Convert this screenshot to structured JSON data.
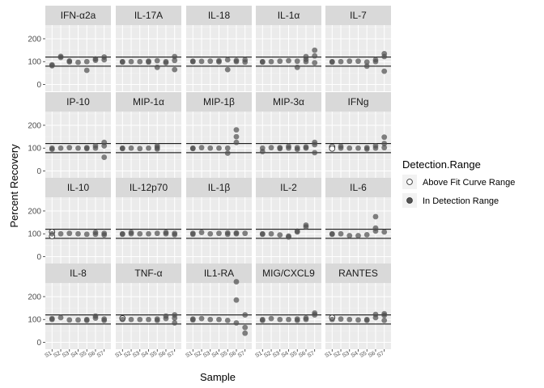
{
  "chart_data": {
    "type": "scatter",
    "facets": [
      "IFN-α2a",
      "IL-17A",
      "IL-18",
      "IL-1α",
      "IL-7",
      "IP-10",
      "MIP-1α",
      "MIP-1β",
      "MIP-3α",
      "IFNg",
      "IL-10",
      "IL-12p70",
      "IL-1β",
      "IL-2",
      "IL-6",
      "IL-8",
      "TNF-α",
      "IL1-RA",
      "MIG/CXCL9",
      "RANTES"
    ],
    "xlabel": "Sample",
    "ylabel": "Percent Recovery",
    "y_ticks": [
      0,
      100,
      200
    ],
    "ylim": [
      -30,
      260
    ],
    "reference_lines": [
      80,
      120
    ],
    "x_tick_labels": [
      "S1",
      "S2",
      "S3",
      "S4",
      "S5",
      "S6",
      "S7"
    ],
    "legend": {
      "title": "Detection.Range",
      "placement": "right",
      "entries": [
        "Above Fit Curve Range",
        "In Detection Range"
      ]
    },
    "colors": {
      "in_range": "#4d4d4d",
      "above": "#ffffff",
      "panel": "#ebebeb",
      "strip": "#d9d9d9",
      "grid": "#ffffff"
    },
    "series": [
      {
        "facet": "IFN-α2a",
        "points": [
          [
            1,
            82,
            0
          ],
          [
            1,
            86,
            0
          ],
          [
            2,
            118,
            0
          ],
          [
            2,
            123,
            0
          ],
          [
            3,
            103,
            0
          ],
          [
            3,
            99,
            0
          ],
          [
            4,
            97,
            0
          ],
          [
            5,
            62,
            0
          ],
          [
            5,
            100,
            0
          ],
          [
            6,
            106,
            0
          ],
          [
            6,
            112,
            0
          ],
          [
            7,
            120,
            0
          ],
          [
            7,
            108,
            0
          ]
        ]
      },
      {
        "facet": "IL-17A",
        "points": [
          [
            1,
            100,
            0
          ],
          [
            1,
            98,
            0
          ],
          [
            2,
            100,
            0
          ],
          [
            3,
            100,
            0
          ],
          [
            4,
            102,
            0
          ],
          [
            4,
            98,
            0
          ],
          [
            5,
            104,
            0
          ],
          [
            5,
            75,
            0
          ],
          [
            6,
            100,
            0
          ],
          [
            6,
            95,
            0
          ],
          [
            7,
            122,
            0
          ],
          [
            7,
            105,
            0
          ],
          [
            7,
            65,
            0
          ]
        ]
      },
      {
        "facet": "IL-18",
        "points": [
          [
            1,
            100,
            0
          ],
          [
            1,
            102,
            0
          ],
          [
            2,
            101,
            0
          ],
          [
            3,
            102,
            0
          ],
          [
            4,
            104,
            0
          ],
          [
            4,
            99,
            0
          ],
          [
            5,
            108,
            0
          ],
          [
            5,
            65,
            0
          ],
          [
            6,
            105,
            0
          ],
          [
            6,
            100,
            0
          ],
          [
            7,
            108,
            0
          ],
          [
            7,
            98,
            0
          ]
        ]
      },
      {
        "facet": "IL-1α",
        "points": [
          [
            1,
            98,
            0
          ],
          [
            1,
            100,
            0
          ],
          [
            2,
            100,
            0
          ],
          [
            3,
            102,
            0
          ],
          [
            4,
            104,
            0
          ],
          [
            5,
            102,
            0
          ],
          [
            5,
            75,
            0
          ],
          [
            6,
            122,
            0
          ],
          [
            6,
            110,
            0
          ],
          [
            6,
            100,
            0
          ],
          [
            7,
            150,
            0
          ],
          [
            7,
            125,
            0
          ],
          [
            7,
            95,
            0
          ]
        ]
      },
      {
        "facet": "IL-7",
        "points": [
          [
            1,
            98,
            0
          ],
          [
            1,
            100,
            0
          ],
          [
            2,
            100,
            0
          ],
          [
            3,
            102,
            0
          ],
          [
            4,
            102,
            0
          ],
          [
            5,
            98,
            0
          ],
          [
            5,
            80,
            0
          ],
          [
            6,
            108,
            0
          ],
          [
            6,
            100,
            0
          ],
          [
            7,
            135,
            0
          ],
          [
            7,
            122,
            0
          ],
          [
            7,
            58,
            0
          ]
        ]
      },
      {
        "facet": "IP-10",
        "points": [
          [
            1,
            95,
            0
          ],
          [
            1,
            100,
            0
          ],
          [
            2,
            100,
            0
          ],
          [
            3,
            102,
            0
          ],
          [
            4,
            100,
            0
          ],
          [
            5,
            102,
            0
          ],
          [
            5,
            98,
            0
          ],
          [
            6,
            110,
            0
          ],
          [
            6,
            100,
            0
          ],
          [
            7,
            125,
            0
          ],
          [
            7,
            110,
            0
          ],
          [
            7,
            60,
            0
          ]
        ]
      },
      {
        "facet": "MIP-1α",
        "points": [
          [
            1,
            98,
            0
          ],
          [
            1,
            100,
            0
          ],
          [
            2,
            100,
            0
          ],
          [
            3,
            98,
            0
          ],
          [
            4,
            100,
            0
          ],
          [
            5,
            102,
            0
          ],
          [
            5,
            110,
            0
          ],
          [
            5,
            96,
            0
          ]
        ]
      },
      {
        "facet": "MIP-1β",
        "points": [
          [
            1,
            98,
            0
          ],
          [
            1,
            100,
            0
          ],
          [
            2,
            102,
            0
          ],
          [
            3,
            100,
            0
          ],
          [
            4,
            100,
            0
          ],
          [
            5,
            100,
            0
          ],
          [
            5,
            78,
            0
          ],
          [
            6,
            180,
            0
          ],
          [
            6,
            150,
            0
          ],
          [
            6,
            125,
            0
          ]
        ]
      },
      {
        "facet": "MIP-3α",
        "points": [
          [
            1,
            85,
            0
          ],
          [
            1,
            100,
            0
          ],
          [
            2,
            102,
            0
          ],
          [
            3,
            102,
            0
          ],
          [
            3,
            98,
            0
          ],
          [
            4,
            108,
            0
          ],
          [
            4,
            100,
            0
          ],
          [
            5,
            102,
            0
          ],
          [
            5,
            95,
            0
          ],
          [
            6,
            105,
            0
          ],
          [
            6,
            100,
            0
          ],
          [
            7,
            125,
            0
          ],
          [
            7,
            115,
            0
          ],
          [
            7,
            80,
            0
          ]
        ]
      },
      {
        "facet": "IFNg",
        "points": [
          [
            1,
            105,
            1
          ],
          [
            1,
            98,
            1
          ],
          [
            2,
            108,
            0
          ],
          [
            2,
            100,
            0
          ],
          [
            3,
            100,
            0
          ],
          [
            4,
            100,
            0
          ],
          [
            5,
            102,
            0
          ],
          [
            5,
            96,
            0
          ],
          [
            6,
            110,
            0
          ],
          [
            6,
            100,
            0
          ],
          [
            7,
            148,
            0
          ],
          [
            7,
            120,
            0
          ],
          [
            7,
            102,
            0
          ]
        ]
      },
      {
        "facet": "IL-10",
        "points": [
          [
            1,
            108,
            1
          ],
          [
            1,
            90,
            1
          ],
          [
            1,
            100,
            0
          ],
          [
            2,
            100,
            0
          ],
          [
            3,
            102,
            0
          ],
          [
            4,
            100,
            0
          ],
          [
            5,
            98,
            0
          ],
          [
            6,
            106,
            0
          ],
          [
            6,
            98,
            0
          ],
          [
            7,
            102,
            0
          ],
          [
            7,
            95,
            0
          ]
        ]
      },
      {
        "facet": "IL-12p70",
        "points": [
          [
            1,
            98,
            0
          ],
          [
            1,
            100,
            0
          ],
          [
            2,
            106,
            0
          ],
          [
            2,
            100,
            0
          ],
          [
            3,
            100,
            0
          ],
          [
            4,
            100,
            0
          ],
          [
            5,
            102,
            0
          ],
          [
            6,
            106,
            0
          ],
          [
            6,
            100,
            0
          ],
          [
            7,
            102,
            0
          ],
          [
            7,
            96,
            0
          ]
        ]
      },
      {
        "facet": "IL-1β",
        "points": [
          [
            1,
            98,
            0
          ],
          [
            1,
            102,
            0
          ],
          [
            2,
            106,
            0
          ],
          [
            3,
            100,
            0
          ],
          [
            4,
            102,
            0
          ],
          [
            5,
            104,
            0
          ],
          [
            5,
            98,
            0
          ],
          [
            6,
            104,
            0
          ],
          [
            6,
            100,
            0
          ],
          [
            7,
            102,
            0
          ]
        ]
      },
      {
        "facet": "IL-2",
        "points": [
          [
            1,
            100,
            0
          ],
          [
            1,
            98,
            0
          ],
          [
            2,
            100,
            0
          ],
          [
            3,
            95,
            0
          ],
          [
            4,
            90,
            0
          ],
          [
            4,
            86,
            0
          ],
          [
            5,
            108,
            0
          ],
          [
            5,
            112,
            0
          ],
          [
            6,
            138,
            0
          ],
          [
            6,
            130,
            0
          ]
        ]
      },
      {
        "facet": "IL-6",
        "points": [
          [
            1,
            98,
            0
          ],
          [
            1,
            100,
            0
          ],
          [
            2,
            100,
            0
          ],
          [
            3,
            92,
            0
          ],
          [
            4,
            92,
            0
          ],
          [
            5,
            96,
            0
          ],
          [
            6,
            175,
            0
          ],
          [
            6,
            125,
            0
          ],
          [
            6,
            112,
            0
          ],
          [
            7,
            108,
            0
          ]
        ]
      },
      {
        "facet": "IL-8",
        "points": [
          [
            1,
            100,
            0
          ],
          [
            1,
            104,
            0
          ],
          [
            2,
            108,
            0
          ],
          [
            3,
            98,
            0
          ],
          [
            4,
            98,
            0
          ],
          [
            5,
            100,
            0
          ],
          [
            5,
            96,
            0
          ],
          [
            6,
            115,
            0
          ],
          [
            6,
            106,
            0
          ],
          [
            7,
            102,
            0
          ],
          [
            7,
            96,
            0
          ]
        ]
      },
      {
        "facet": "TNF-α",
        "points": [
          [
            1,
            105,
            1
          ],
          [
            1,
            100,
            0
          ],
          [
            2,
            100,
            0
          ],
          [
            3,
            100,
            0
          ],
          [
            4,
            100,
            0
          ],
          [
            5,
            102,
            0
          ],
          [
            5,
            96,
            0
          ],
          [
            6,
            115,
            0
          ],
          [
            6,
            104,
            0
          ],
          [
            7,
            120,
            0
          ],
          [
            7,
            106,
            0
          ],
          [
            7,
            85,
            0
          ]
        ]
      },
      {
        "facet": "IL1-RA",
        "points": [
          [
            1,
            102,
            0
          ],
          [
            1,
            98,
            0
          ],
          [
            2,
            104,
            0
          ],
          [
            3,
            100,
            0
          ],
          [
            4,
            100,
            0
          ],
          [
            5,
            96,
            0
          ],
          [
            6,
            265,
            0
          ],
          [
            6,
            185,
            0
          ],
          [
            6,
            85,
            0
          ],
          [
            7,
            120,
            0
          ],
          [
            7,
            65,
            0
          ],
          [
            7,
            40,
            0
          ]
        ]
      },
      {
        "facet": "MIG/CXCL9",
        "points": [
          [
            1,
            100,
            0
          ],
          [
            1,
            96,
            0
          ],
          [
            2,
            104,
            0
          ],
          [
            3,
            100,
            0
          ],
          [
            4,
            100,
            0
          ],
          [
            5,
            102,
            0
          ],
          [
            5,
            96,
            0
          ],
          [
            6,
            106,
            0
          ],
          [
            6,
            100,
            0
          ],
          [
            7,
            128,
            0
          ],
          [
            7,
            120,
            0
          ]
        ]
      },
      {
        "facet": "RANTES",
        "points": [
          [
            1,
            108,
            1
          ],
          [
            1,
            100,
            0
          ],
          [
            2,
            102,
            0
          ],
          [
            3,
            100,
            0
          ],
          [
            4,
            98,
            0
          ],
          [
            5,
            100,
            0
          ],
          [
            5,
            96,
            0
          ],
          [
            6,
            122,
            0
          ],
          [
            6,
            108,
            0
          ],
          [
            7,
            125,
            0
          ],
          [
            7,
            118,
            0
          ],
          [
            7,
            96,
            0
          ]
        ]
      }
    ]
  }
}
